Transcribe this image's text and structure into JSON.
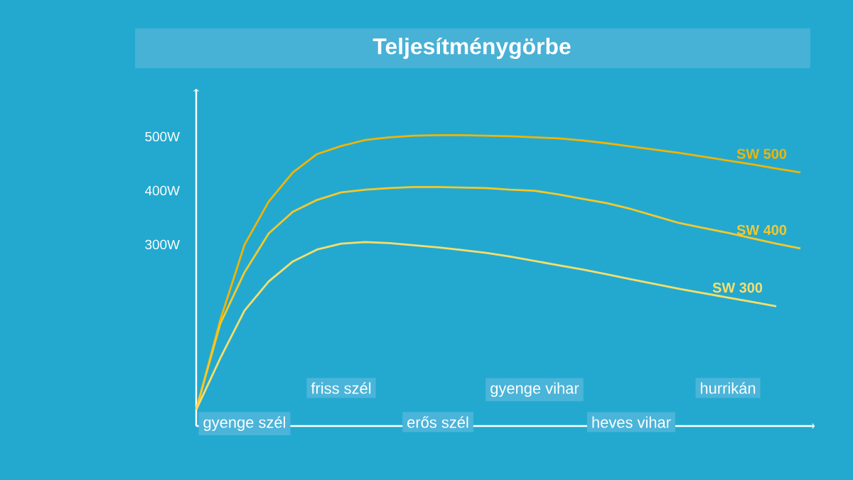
{
  "chart_data": {
    "type": "line",
    "title": "Teljesítménygörbe",
    "marker": "none",
    "grid": false,
    "legend": false,
    "categories": [
      null,
      null,
      "gyenge szél",
      null,
      null,
      null,
      "friss szél",
      null,
      null,
      null,
      "erős szél",
      null,
      null,
      null,
      "gyenge vihar",
      null,
      null,
      null,
      "heves vihar",
      null,
      null,
      null,
      "hurrikán",
      null,
      null,
      null
    ],
    "ylim": [
      -30,
      595
    ],
    "yticks": [
      {
        "value": 300,
        "label": "300W"
      },
      {
        "value": 400,
        "label": "400W"
      },
      {
        "value": 500,
        "label": "500W"
      }
    ],
    "series": [
      {
        "name": "SW 500",
        "color": "#f2b400",
        "values": [
          0,
          167,
          306,
          386,
          440,
          474,
          489,
          500,
          505,
          508,
          509,
          509,
          508,
          507,
          505,
          503,
          499,
          494,
          488,
          482,
          476,
          469,
          462,
          455,
          447,
          440
        ]
      },
      {
        "name": "SW 400",
        "color": "#f5c82a",
        "values": [
          0,
          160,
          255,
          327,
          367,
          389,
          403,
          408,
          411,
          413,
          413,
          412,
          411,
          408,
          406,
          399,
          391,
          383,
          372,
          359,
          346,
          337,
          328,
          318,
          308,
          299
        ]
      },
      {
        "name": "SW 300",
        "color": "#f7de6a",
        "values": [
          0,
          96,
          184,
          238,
          275,
          297,
          308,
          311,
          309,
          305,
          301,
          296,
          291,
          284,
          276,
          268,
          260,
          251,
          242,
          233,
          224,
          216,
          208,
          200,
          192,
          null
        ]
      }
    ]
  }
}
